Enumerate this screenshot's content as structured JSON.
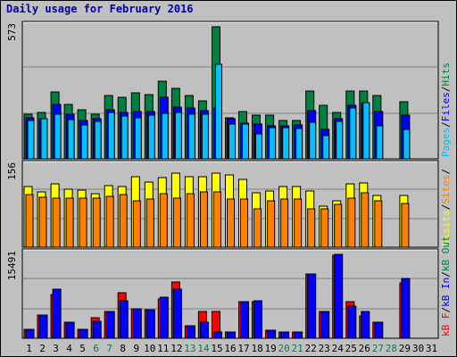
{
  "chart_data": {
    "type": "bar",
    "title": "Daily usage for February 2016",
    "categories": [
      "1",
      "2",
      "3",
      "4",
      "5",
      "6",
      "7",
      "8",
      "9",
      "10",
      "11",
      "12",
      "13",
      "14",
      "15",
      "16",
      "17",
      "18",
      "19",
      "20",
      "21",
      "22",
      "23",
      "24",
      "25",
      "26",
      "27",
      "28",
      "29",
      "30",
      "31"
    ],
    "weekend_days": [
      6,
      7,
      13,
      14,
      20,
      21,
      27,
      28
    ],
    "colors": {
      "hits": "#008040",
      "files": "#0000ff",
      "pages": "#00c0ff",
      "visits": "#ffff00",
      "sites": "#ff8000",
      "kb_in": "#008040",
      "kb_out": "#0000ff",
      "kb_f": "#ff0000",
      "day_normal": "#000000",
      "day_weekend": "#00805c"
    },
    "panels": [
      {
        "id": "hits-files-pages",
        "ymax_label": "573",
        "ymax": 573,
        "right_label": [
          {
            "text": "Pages",
            "color": "#00c0ff"
          },
          {
            "text": "/",
            "color": "#000000"
          },
          {
            "text": "Files",
            "color": "#0000ff"
          },
          {
            "text": "/",
            "color": "#000000"
          },
          {
            "text": "Hits",
            "color": "#008040"
          }
        ],
        "series": [
          {
            "key": "hits",
            "values": [
              192,
              201,
              289,
              237,
              213,
              193,
              274,
              269,
              285,
              277,
              336,
              305,
              274,
              253,
              573,
              178,
              207,
              190,
              190,
              167,
              167,
              293,
              233,
              201,
              296,
              296,
              274,
              0,
              248,
              0,
              0
            ]
          },
          {
            "key": "files",
            "values": [
              177,
              176,
              237,
              193,
              167,
              175,
              212,
              202,
              207,
              204,
              267,
              225,
              221,
              209,
              219,
              174,
              153,
              151,
              145,
              142,
              148,
              210,
              128,
              175,
              232,
              239,
              204,
              0,
              190,
              0,
              0
            ]
          },
          {
            "key": "pages",
            "values": [
              165,
              173,
              195,
              170,
              148,
              161,
              203,
              184,
              180,
              191,
              199,
              201,
              195,
              192,
              411,
              151,
              150,
              108,
              134,
              134,
              130,
              159,
              101,
              162,
              221,
              245,
              145,
              0,
              126,
              0,
              0
            ]
          }
        ]
      },
      {
        "id": "visits-sites",
        "ymax_label": "156",
        "ymax": 156,
        "right_label": [
          {
            "text": "Visits",
            "color": "#ffff00"
          },
          {
            "text": "/",
            "color": "#000000"
          },
          {
            "text": "Sites",
            "color": "#ff8000"
          },
          {
            "text": "/",
            "color": "#000000"
          }
        ],
        "series": [
          {
            "key": "visits",
            "values": [
              116,
              106,
              122,
              111,
              109,
              102,
              119,
              117,
              135,
              125,
              133,
              143,
              136,
              136,
              143,
              138,
              131,
              104,
              108,
              116,
              116,
              108,
              79,
              90,
              121,
              124,
              99,
              0,
              99,
              0,
              0
            ]
          },
          {
            "key": "sites",
            "values": [
              101,
              96,
              95,
              95,
              95,
              94,
              98,
              101,
              89,
              93,
              103,
              95,
              103,
              107,
              107,
              93,
              93,
              74,
              90,
              93,
              93,
              74,
              73,
              82,
              95,
              104,
              89,
              0,
              84,
              0,
              0
            ]
          }
        ]
      },
      {
        "id": "kbf-kbin-kbout",
        "ymax_label": "15491",
        "ymax": 15491,
        "right_label": [
          {
            "text": "kB F",
            "color": "#ff0000"
          },
          {
            "text": "/",
            "color": "#000000"
          },
          {
            "text": "kB In",
            "color": "#0000ff"
          },
          {
            "text": "/",
            "color": "#000000"
          },
          {
            "text": "kB Out",
            "color": "#008040"
          }
        ],
        "series": [
          {
            "key": "kb_f",
            "values": [
              1700,
              4300,
              8000,
              3000,
              1700,
              3800,
              4900,
              8400,
              5500,
              5300,
              7200,
              10300,
              2300,
              5000,
              4900,
              1200,
              6800,
              6800,
              1500,
              1100,
              1100,
              11900,
              4900,
              15300,
              6700,
              4200,
              3000,
              0,
              10200,
              0,
              0
            ]
          },
          {
            "key": "kb_out",
            "values": [
              1700,
              4300,
              9000,
              2900,
              1700,
              3200,
              4900,
              7000,
              5500,
              5300,
              7600,
              9000,
              2300,
              3000,
              1200,
              1200,
              6800,
              7000,
              1500,
              1100,
              1100,
              11900,
              4900,
              15491,
              6000,
              5000,
              3000,
              0,
              11000,
              0,
              0
            ]
          }
        ]
      }
    ]
  }
}
